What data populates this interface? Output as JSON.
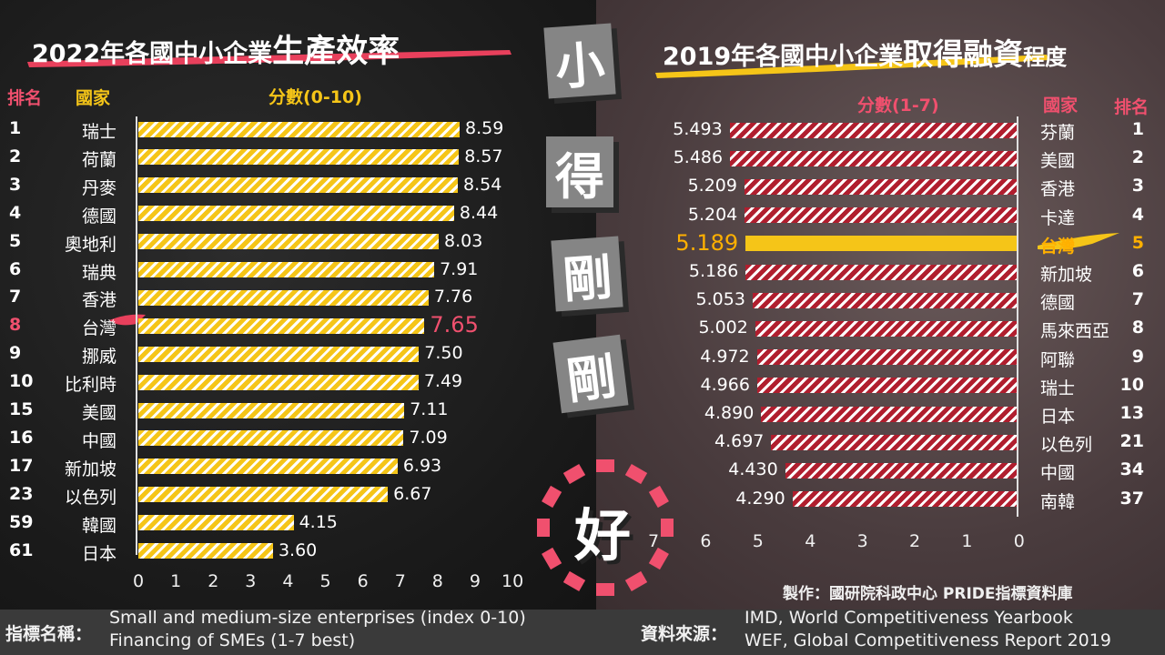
{
  "left_chart": {
    "title_prefix": "2022年各國中小企業",
    "title_emph": "生產效率",
    "rank_header": "排名",
    "country_header": "國家",
    "score_header": "分數(0-10)",
    "x_ticks": [
      "0",
      "1",
      "2",
      "3",
      "4",
      "5",
      "6",
      "7",
      "8",
      "9",
      "10"
    ]
  },
  "right_chart": {
    "title_prefix": "2019年各國中小企業",
    "title_emph": "取得融資",
    "title_suffix": "程度",
    "score_header": "分數(1-7)",
    "country_header": "國家",
    "rank_header": "排名",
    "x_ticks": [
      "7",
      "6",
      "5",
      "4",
      "3",
      "2",
      "1",
      "0"
    ]
  },
  "center_slogan": [
    "小",
    "得",
    "剛",
    "剛",
    "好"
  ],
  "credit": "製作：國研院科政中心  PRIDE指標資料庫",
  "footer": {
    "indicator_label": "指標名稱：",
    "indicator_1": "Small and medium-size enterprises (index 0-10)",
    "indicator_2": "Financing of SMEs (1-7 best)",
    "source_label": "資料來源：",
    "source_1": "IMD, World Competitiveness Yearbook",
    "source_2": "WEF, Global Competitiveness Report 2019"
  },
  "colors": {
    "yellow": "#f5c518",
    "red": "#b01e2e",
    "pink": "#f0506e",
    "highlight_yellow": "#ffb000"
  },
  "chart_data": [
    {
      "type": "bar",
      "title": "2022年各國中小企業生產效率",
      "xlabel": "分數(0-10)",
      "xlim": [
        0,
        10
      ],
      "categories": [
        "瑞士",
        "荷蘭",
        "丹麥",
        "德國",
        "奧地利",
        "瑞典",
        "香港",
        "台灣",
        "挪威",
        "比利時",
        "美國",
        "中國",
        "新加坡",
        "以色列",
        "韓國",
        "日本"
      ],
      "ranks": [
        "1",
        "2",
        "3",
        "4",
        "5",
        "6",
        "7",
        "8",
        "9",
        "10",
        "15",
        "16",
        "17",
        "23",
        "59",
        "61"
      ],
      "values": [
        8.59,
        8.57,
        8.54,
        8.44,
        8.03,
        7.91,
        7.76,
        7.65,
        7.5,
        7.49,
        7.11,
        7.09,
        6.93,
        6.67,
        4.15,
        3.6
      ],
      "value_labels": [
        "8.59",
        "8.57",
        "8.54",
        "8.44",
        "8.03",
        "7.91",
        "7.76",
        "7.65",
        "7.50",
        "7.49",
        "7.11",
        "7.09",
        "6.93",
        "6.67",
        "4.15",
        "3.60"
      ],
      "highlight": "台灣"
    },
    {
      "type": "bar",
      "title": "2019年各國中小企業取得融資程度",
      "xlabel": "分數(1-7)",
      "xlim": [
        0,
        7
      ],
      "categories": [
        "芬蘭",
        "美國",
        "香港",
        "卡達",
        "台灣",
        "新加坡",
        "德國",
        "馬來西亞",
        "阿聯",
        "瑞士",
        "日本",
        "以色列",
        "中國",
        "南韓"
      ],
      "ranks": [
        "1",
        "2",
        "3",
        "4",
        "5",
        "6",
        "7",
        "8",
        "9",
        "10",
        "13",
        "21",
        "34",
        "37"
      ],
      "values": [
        5.493,
        5.486,
        5.209,
        5.204,
        5.189,
        5.186,
        5.053,
        5.002,
        4.972,
        4.966,
        4.89,
        4.697,
        4.43,
        4.29
      ],
      "value_labels": [
        "5.493",
        "5.486",
        "5.209",
        "5.204",
        "5.189",
        "5.186",
        "5.053",
        "5.002",
        "4.972",
        "4.966",
        "4.890",
        "4.697",
        "4.430",
        "4.290"
      ],
      "highlight": "台灣"
    }
  ]
}
